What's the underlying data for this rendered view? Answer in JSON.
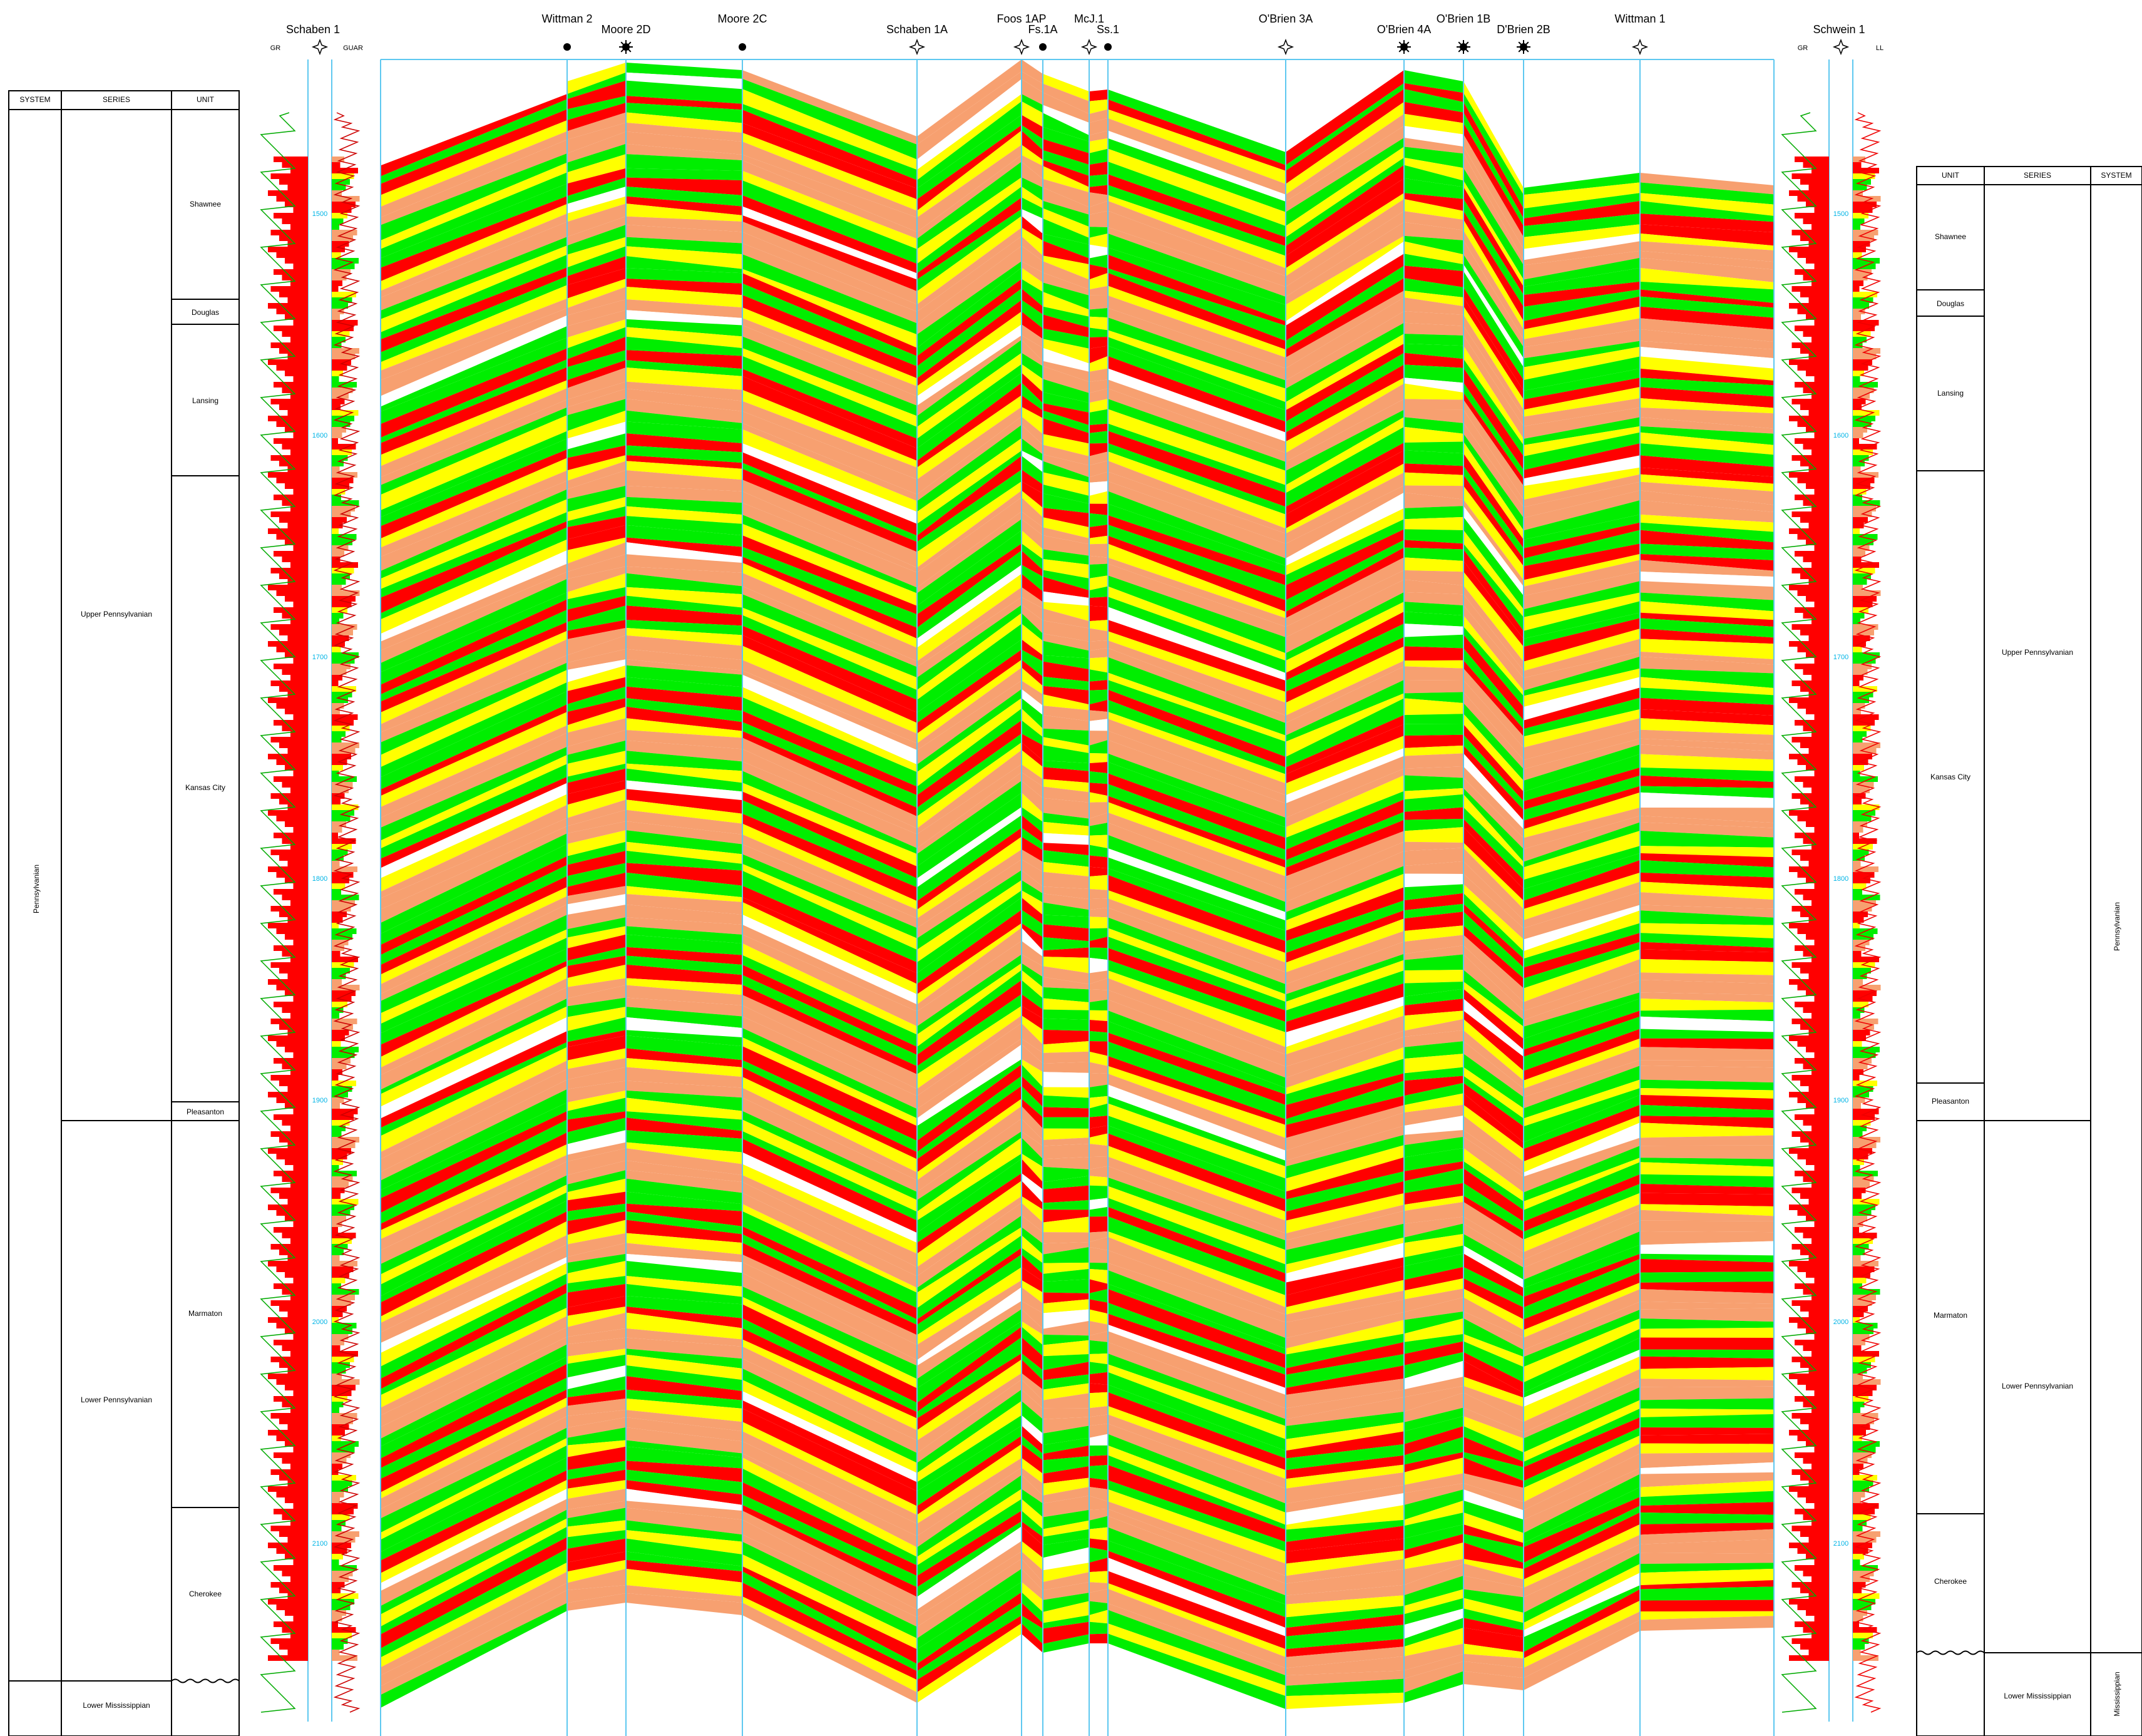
{
  "left_table": {
    "headers": [
      "SYSTEM",
      "SERIES",
      "UNIT"
    ],
    "system": [
      {
        "label": "Pennsylvanian"
      }
    ],
    "series": [
      {
        "label": "Upper Pennsylvanian"
      },
      {
        "label": "Lower Pennsylvanian"
      },
      {
        "label": "Lower Mississippian"
      }
    ],
    "units": [
      {
        "label": "Shawnee"
      },
      {
        "label": "Douglas"
      },
      {
        "label": "Lansing"
      },
      {
        "label": "Kansas City"
      },
      {
        "label": "Pleasanton"
      },
      {
        "label": "Marmaton"
      },
      {
        "label": "Cherokee"
      }
    ]
  },
  "right_table": {
    "headers": [
      "UNIT",
      "SERIES",
      "SYSTEM"
    ],
    "units": [
      {
        "label": "Shawnee"
      },
      {
        "label": "Douglas"
      },
      {
        "label": "Lansing"
      },
      {
        "label": "Kansas City"
      },
      {
        "label": "Pleasanton"
      },
      {
        "label": "Marmaton"
      },
      {
        "label": "Cherokee"
      }
    ],
    "series": [
      {
        "label": "Upper Pennsylvanian"
      },
      {
        "label": "Lower Pennsylvanian"
      },
      {
        "label": "Lower Mississippian"
      }
    ],
    "system": [
      {
        "label": "Pennsylvanian"
      },
      {
        "label": "Mississippian"
      }
    ]
  },
  "log_left": {
    "name": "Schaben 1",
    "curve_left": "GR",
    "curve_right": "GUAR",
    "depths": [
      "1500",
      "1600",
      "1700",
      "1800",
      "1900",
      "2000",
      "2100"
    ]
  },
  "log_right": {
    "name": "Schwein 1",
    "curve_left": "GR",
    "curve_right": "LL",
    "depths": [
      "1500",
      "1600",
      "1700",
      "1800",
      "1900",
      "2000",
      "2100"
    ]
  },
  "wells": [
    {
      "name": "Wittman 2",
      "symbol": "dot"
    },
    {
      "name": "Moore 2D",
      "symbol": "sun"
    },
    {
      "name": "Moore 2C",
      "symbol": "dot"
    },
    {
      "name": "Schaben 1A",
      "symbol": "gas-star"
    },
    {
      "name": "Foos 1AP",
      "symbol": "gas-star"
    },
    {
      "name": "Fs.1A",
      "symbol": "dot"
    },
    {
      "name": "McJ.1",
      "symbol": "gas-star"
    },
    {
      "name": "Ss.1",
      "symbol": "dot"
    },
    {
      "name": "O'Brien 3A",
      "symbol": "gas-star"
    },
    {
      "name": "O'Brien 4A",
      "symbol": "sun"
    },
    {
      "name": "O'Brien 1B",
      "symbol": "sun"
    },
    {
      "name": "D'Brien 2B",
      "symbol": "sun"
    },
    {
      "name": "Wittman 1",
      "symbol": "gas-star"
    }
  ],
  "facies_colors": {
    "green": "#00ee00",
    "yellow": "#ffff00",
    "salmon": "#f7a070",
    "red": "#ff0000"
  },
  "accent_colors": {
    "well_line": "#5ec8f0",
    "depth_text": "#00b4e6",
    "frame": "#000000"
  }
}
